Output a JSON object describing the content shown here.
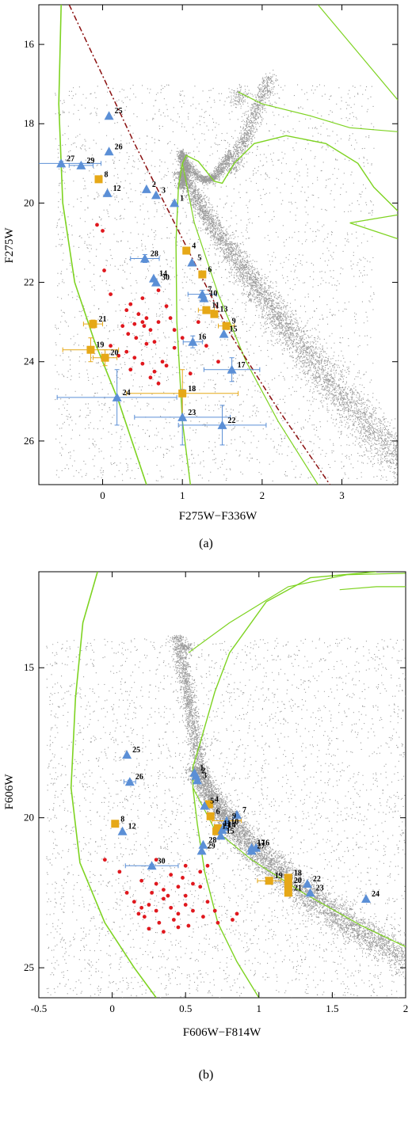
{
  "chart_data": [
    {
      "type": "scatter",
      "caption": "(a)",
      "xlabel": "F275W−F336W",
      "ylabel": "F275W",
      "xlim": [
        -0.8,
        3.7
      ],
      "ylim": [
        27.1,
        15.0
      ],
      "y_inverted": true,
      "xticks": [
        "0",
        "1",
        "2",
        "3"
      ],
      "yticks": [
        "16",
        "18",
        "20",
        "22",
        "24",
        "26"
      ],
      "colors": {
        "blue_star": "#5b8fd6",
        "yellow_star": "#e6a817",
        "red_dot": "#e0181e",
        "isochrone": "#7ed321",
        "dashdot": "#8b1010",
        "field": "#8a8a8a"
      },
      "blue_triangles": [
        {
          "id": "1",
          "x": 0.9,
          "y": 20.0
        },
        {
          "id": "2",
          "x": 0.55,
          "y": 19.65
        },
        {
          "id": "3",
          "x": 0.67,
          "y": 19.8
        },
        {
          "id": "5",
          "x": 1.12,
          "y": 21.5
        },
        {
          "id": "7",
          "x": 1.25,
          "y": 22.3
        },
        {
          "id": "10",
          "x": 1.27,
          "y": 22.4
        },
        {
          "id": "12",
          "x": 0.06,
          "y": 19.75
        },
        {
          "id": "14",
          "x": 0.64,
          "y": 21.9
        },
        {
          "id": "15",
          "x": 1.52,
          "y": 23.3
        },
        {
          "id": "16",
          "x": 1.13,
          "y": 23.5
        },
        {
          "id": "17",
          "x": 1.62,
          "y": 24.2
        },
        {
          "id": "22",
          "x": 1.5,
          "y": 25.6
        },
        {
          "id": "23",
          "x": 1.0,
          "y": 25.4
        },
        {
          "id": "24",
          "x": 0.18,
          "y": 24.9
        },
        {
          "id": "25",
          "x": 0.08,
          "y": 17.8
        },
        {
          "id": "26",
          "x": 0.08,
          "y": 18.7
        },
        {
          "id": "27",
          "x": -0.52,
          "y": 19.0
        },
        {
          "id": "28",
          "x": 0.53,
          "y": 21.4
        },
        {
          "id": "29",
          "x": -0.27,
          "y": 19.05
        },
        {
          "id": "30",
          "x": 0.67,
          "y": 22.0
        }
      ],
      "yellow_squares": [
        {
          "id": "4",
          "x": 1.05,
          "y": 21.2
        },
        {
          "id": "6",
          "x": 1.25,
          "y": 21.8
        },
        {
          "id": "8",
          "x": -0.05,
          "y": 19.4
        },
        {
          "id": "9",
          "x": 1.55,
          "y": 23.1
        },
        {
          "id": "11",
          "x": 1.3,
          "y": 22.7
        },
        {
          "id": "13",
          "x": 1.4,
          "y": 22.8
        },
        {
          "id": "18",
          "x": 1.0,
          "y": 24.8
        },
        {
          "id": "19",
          "x": -0.15,
          "y": 23.7
        },
        {
          "id": "20",
          "x": 0.03,
          "y": 23.9
        },
        {
          "id": "21",
          "x": -0.12,
          "y": 23.05
        }
      ],
      "error_bars": [
        {
          "x": -0.52,
          "y": 19.0,
          "xerr": 0.5,
          "yerr": 0.05,
          "color": "blue"
        },
        {
          "x": -0.27,
          "y": 19.05,
          "xerr": 0.15,
          "yerr": 0.05,
          "color": "blue"
        },
        {
          "x": 0.53,
          "y": 21.4,
          "xerr": 0.18,
          "yerr": 0.1,
          "color": "blue"
        },
        {
          "x": 1.25,
          "y": 22.3,
          "xerr": 0.18,
          "yerr": 0.1,
          "color": "blue"
        },
        {
          "x": 1.13,
          "y": 23.5,
          "xerr": 0.12,
          "yerr": 0.15,
          "color": "blue"
        },
        {
          "x": 1.62,
          "y": 24.2,
          "xerr": 0.35,
          "yerr": 0.3,
          "color": "blue"
        },
        {
          "x": 1.5,
          "y": 25.6,
          "xerr": 0.55,
          "yerr": 0.5,
          "color": "blue"
        },
        {
          "x": 1.0,
          "y": 25.4,
          "xerr": 0.6,
          "yerr": 0.7,
          "color": "blue"
        },
        {
          "x": 0.18,
          "y": 24.9,
          "xerr": 0.75,
          "yerr": 0.7,
          "color": "blue"
        },
        {
          "x": 1.0,
          "y": 24.8,
          "xerr": 0.7,
          "yerr": 0.6,
          "color": "yellow"
        },
        {
          "x": -0.15,
          "y": 23.7,
          "xerr": 0.35,
          "yerr": 0.3,
          "color": "yellow"
        },
        {
          "x": 0.03,
          "y": 23.9,
          "xerr": 0.15,
          "yerr": 0.2,
          "color": "yellow"
        },
        {
          "x": -0.12,
          "y": 23.05,
          "xerr": 0.12,
          "yerr": 0.1,
          "color": "yellow"
        },
        {
          "x": 1.3,
          "y": 22.7,
          "xerr": 0.1,
          "yerr": 0.08,
          "color": "yellow"
        },
        {
          "x": 1.55,
          "y": 23.1,
          "xerr": 0.1,
          "yerr": 0.08,
          "color": "yellow"
        }
      ],
      "red_dots": [
        [
          -0.07,
          20.55
        ],
        [
          0.0,
          20.7
        ],
        [
          0.02,
          21.7
        ],
        [
          0.1,
          22.3
        ],
        [
          0.3,
          22.7
        ],
        [
          0.35,
          22.55
        ],
        [
          0.5,
          22.4
        ],
        [
          0.7,
          22.2
        ],
        [
          0.8,
          22.6
        ],
        [
          0.45,
          22.8
        ],
        [
          0.55,
          22.9
        ],
        [
          0.4,
          23.05
        ],
        [
          0.5,
          23.0
        ],
        [
          0.6,
          23.2
        ],
        [
          0.25,
          23.1
        ],
        [
          0.7,
          23.0
        ],
        [
          0.32,
          23.3
        ],
        [
          0.42,
          23.4
        ],
        [
          0.52,
          23.1
        ],
        [
          0.65,
          23.5
        ],
        [
          0.9,
          23.2
        ],
        [
          1.0,
          23.4
        ],
        [
          0.85,
          22.9
        ],
        [
          0.1,
          23.6
        ],
        [
          0.2,
          23.85
        ],
        [
          0.3,
          23.75
        ],
        [
          0.4,
          23.9
        ],
        [
          0.55,
          23.55
        ],
        [
          0.75,
          24.0
        ],
        [
          0.8,
          24.1
        ],
        [
          0.9,
          23.65
        ],
        [
          1.3,
          23.6
        ],
        [
          1.45,
          24.0
        ],
        [
          1.1,
          24.3
        ],
        [
          0.6,
          24.4
        ],
        [
          0.7,
          24.55
        ],
        [
          0.35,
          24.2
        ],
        [
          0.5,
          24.05
        ],
        [
          0.65,
          24.25
        ],
        [
          1.2,
          23.0
        ]
      ]
    },
    {
      "type": "scatter",
      "caption": "(b)",
      "xlabel": "F606W−F814W",
      "ylabel": "F606W",
      "xlim": [
        -0.5,
        2.0
      ],
      "ylim": [
        26.0,
        11.8
      ],
      "y_inverted": true,
      "xticks": [
        "-0.5",
        "0",
        "0.5",
        "1",
        "1.5",
        "2"
      ],
      "yticks": [
        "15",
        "20",
        "25"
      ],
      "blue_triangles": [
        {
          "id": "1",
          "x": 0.56,
          "y": 18.5
        },
        {
          "id": "2",
          "x": 0.57,
          "y": 18.6
        },
        {
          "id": "3",
          "x": 0.58,
          "y": 18.75
        },
        {
          "id": "5",
          "x": 0.63,
          "y": 19.6
        },
        {
          "id": "7",
          "x": 0.85,
          "y": 19.9
        },
        {
          "id": "9",
          "x": 0.78,
          "y": 20.1
        },
        {
          "id": "10",
          "x": 0.77,
          "y": 20.3
        },
        {
          "id": "12",
          "x": 0.07,
          "y": 20.45
        },
        {
          "id": "14",
          "x": 0.75,
          "y": 20.4
        },
        {
          "id": "15",
          "x": 0.74,
          "y": 20.6
        },
        {
          "id": "16",
          "x": 0.98,
          "y": 21.0
        },
        {
          "id": "17",
          "x": 0.95,
          "y": 21.0
        },
        {
          "id": "22",
          "x": 1.33,
          "y": 22.2
        },
        {
          "id": "23",
          "x": 1.35,
          "y": 22.5
        },
        {
          "id": "24",
          "x": 1.73,
          "y": 22.7
        },
        {
          "id": "25",
          "x": 0.1,
          "y": 17.9
        },
        {
          "id": "26",
          "x": 0.12,
          "y": 18.8
        },
        {
          "id": "27",
          "x": 0.95,
          "y": 21.1
        },
        {
          "id": "28",
          "x": 0.62,
          "y": 20.9
        },
        {
          "id": "29",
          "x": 0.61,
          "y": 21.1
        },
        {
          "id": "30",
          "x": 0.27,
          "y": 21.6
        }
      ],
      "yellow_squares": [
        {
          "id": "4",
          "x": 0.66,
          "y": 19.55
        },
        {
          "id": "6",
          "x": 0.67,
          "y": 19.95
        },
        {
          "id": "8",
          "x": 0.02,
          "y": 20.2
        },
        {
          "id": "11",
          "x": 0.72,
          "y": 20.35
        },
        {
          "id": "13",
          "x": 0.71,
          "y": 20.45
        },
        {
          "id": "18",
          "x": 1.2,
          "y": 22.0
        },
        {
          "id": "19",
          "x": 1.07,
          "y": 22.1
        },
        {
          "id": "20",
          "x": 1.2,
          "y": 22.25
        },
        {
          "id": "21",
          "x": 1.2,
          "y": 22.5
        }
      ],
      "error_bars": [
        {
          "x": 0.27,
          "y": 21.6,
          "xerr": 0.18,
          "yerr": 0.05,
          "color": "blue"
        },
        {
          "x": 0.78,
          "y": 20.1,
          "xerr": 0.1,
          "yerr": 0.05,
          "color": "yellow"
        },
        {
          "x": 0.12,
          "y": 18.8,
          "xerr": 0.04,
          "yerr": 0.05,
          "color": "blue"
        },
        {
          "x": 1.07,
          "y": 22.1,
          "xerr": 0.08,
          "yerr": 0.05,
          "color": "yellow"
        }
      ],
      "red_dots": [
        [
          -0.05,
          21.4
        ],
        [
          0.05,
          21.8
        ],
        [
          0.1,
          22.5
        ],
        [
          0.2,
          22.1
        ],
        [
          0.3,
          22.2
        ],
        [
          0.35,
          22.4
        ],
        [
          0.4,
          21.9
        ],
        [
          0.45,
          22.3
        ],
        [
          0.5,
          22.6
        ],
        [
          0.15,
          22.8
        ],
        [
          0.2,
          23.0
        ],
        [
          0.25,
          22.9
        ],
        [
          0.3,
          23.1
        ],
        [
          0.35,
          22.7
        ],
        [
          0.4,
          23.0
        ],
        [
          0.45,
          23.2
        ],
        [
          0.5,
          22.9
        ],
        [
          0.55,
          23.1
        ],
        [
          0.6,
          22.3
        ],
        [
          0.65,
          22.8
        ],
        [
          0.22,
          23.3
        ],
        [
          0.32,
          23.5
        ],
        [
          0.42,
          23.4
        ],
        [
          0.52,
          23.6
        ],
        [
          0.62,
          23.3
        ],
        [
          0.72,
          23.5
        ],
        [
          0.82,
          23.4
        ],
        [
          0.85,
          23.2
        ],
        [
          0.25,
          23.7
        ],
        [
          0.35,
          23.8
        ],
        [
          0.45,
          23.65
        ],
        [
          0.5,
          21.6
        ],
        [
          0.6,
          21.8
        ],
        [
          0.27,
          22.5
        ],
        [
          0.38,
          22.6
        ],
        [
          0.48,
          22.0
        ],
        [
          0.55,
          22.2
        ],
        [
          0.18,
          23.2
        ],
        [
          0.3,
          21.4
        ],
        [
          0.7,
          23.1
        ],
        [
          0.65,
          21.6
        ]
      ]
    }
  ]
}
